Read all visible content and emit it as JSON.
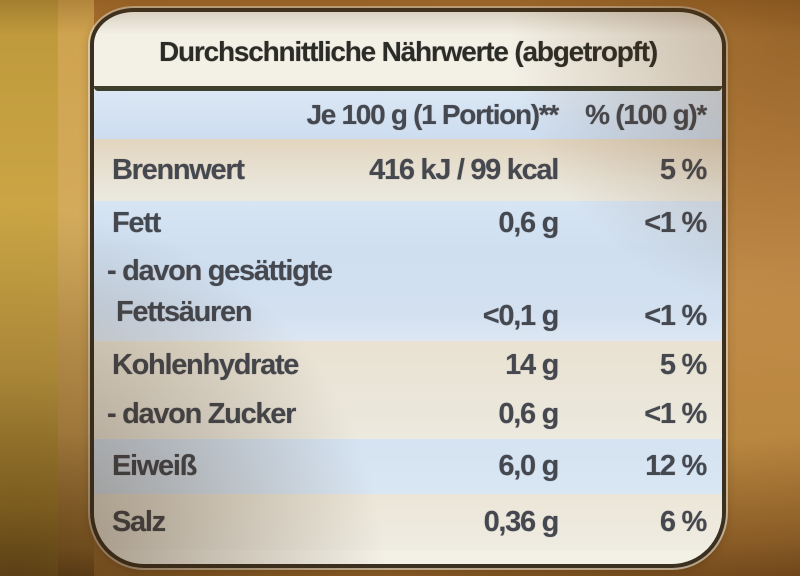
{
  "label": {
    "title": "Durchschnittliche Nährwerte (abgetropft)",
    "column_headers": {
      "amount": "Je 100 g (1 Portion)**",
      "daily_percent": "% (100 g)*"
    },
    "rows": [
      {
        "name": "Brennwert",
        "amount": "416 kJ / 99 kcal",
        "percent": "5 %"
      },
      {
        "name": "Fett",
        "amount": "0,6 g",
        "percent": "<1 %"
      },
      {
        "name_line1": "- davon gesättigte",
        "name_line2": "Fettsäuren",
        "amount": "<0,1 g",
        "percent": "<1 %"
      },
      {
        "name": "Kohlenhydrate",
        "amount": "14 g",
        "percent": "5 %"
      },
      {
        "name": "- davon Zucker",
        "amount": "0,6 g",
        "percent": "<1 %"
      },
      {
        "name": "Eiweiß",
        "amount": "6,0 g",
        "percent": "12 %"
      },
      {
        "name": "Salz",
        "amount": "0,36 g",
        "percent": "6 %"
      }
    ],
    "colors": {
      "row_blue": "#cfdff0",
      "row_cream": "#e7dcc8",
      "label_background": "#f3f0e6",
      "label_border": "#3b3020",
      "table_text": "#45484f",
      "package_gold": "#c9a446",
      "package_tan": "#c28c49"
    }
  }
}
